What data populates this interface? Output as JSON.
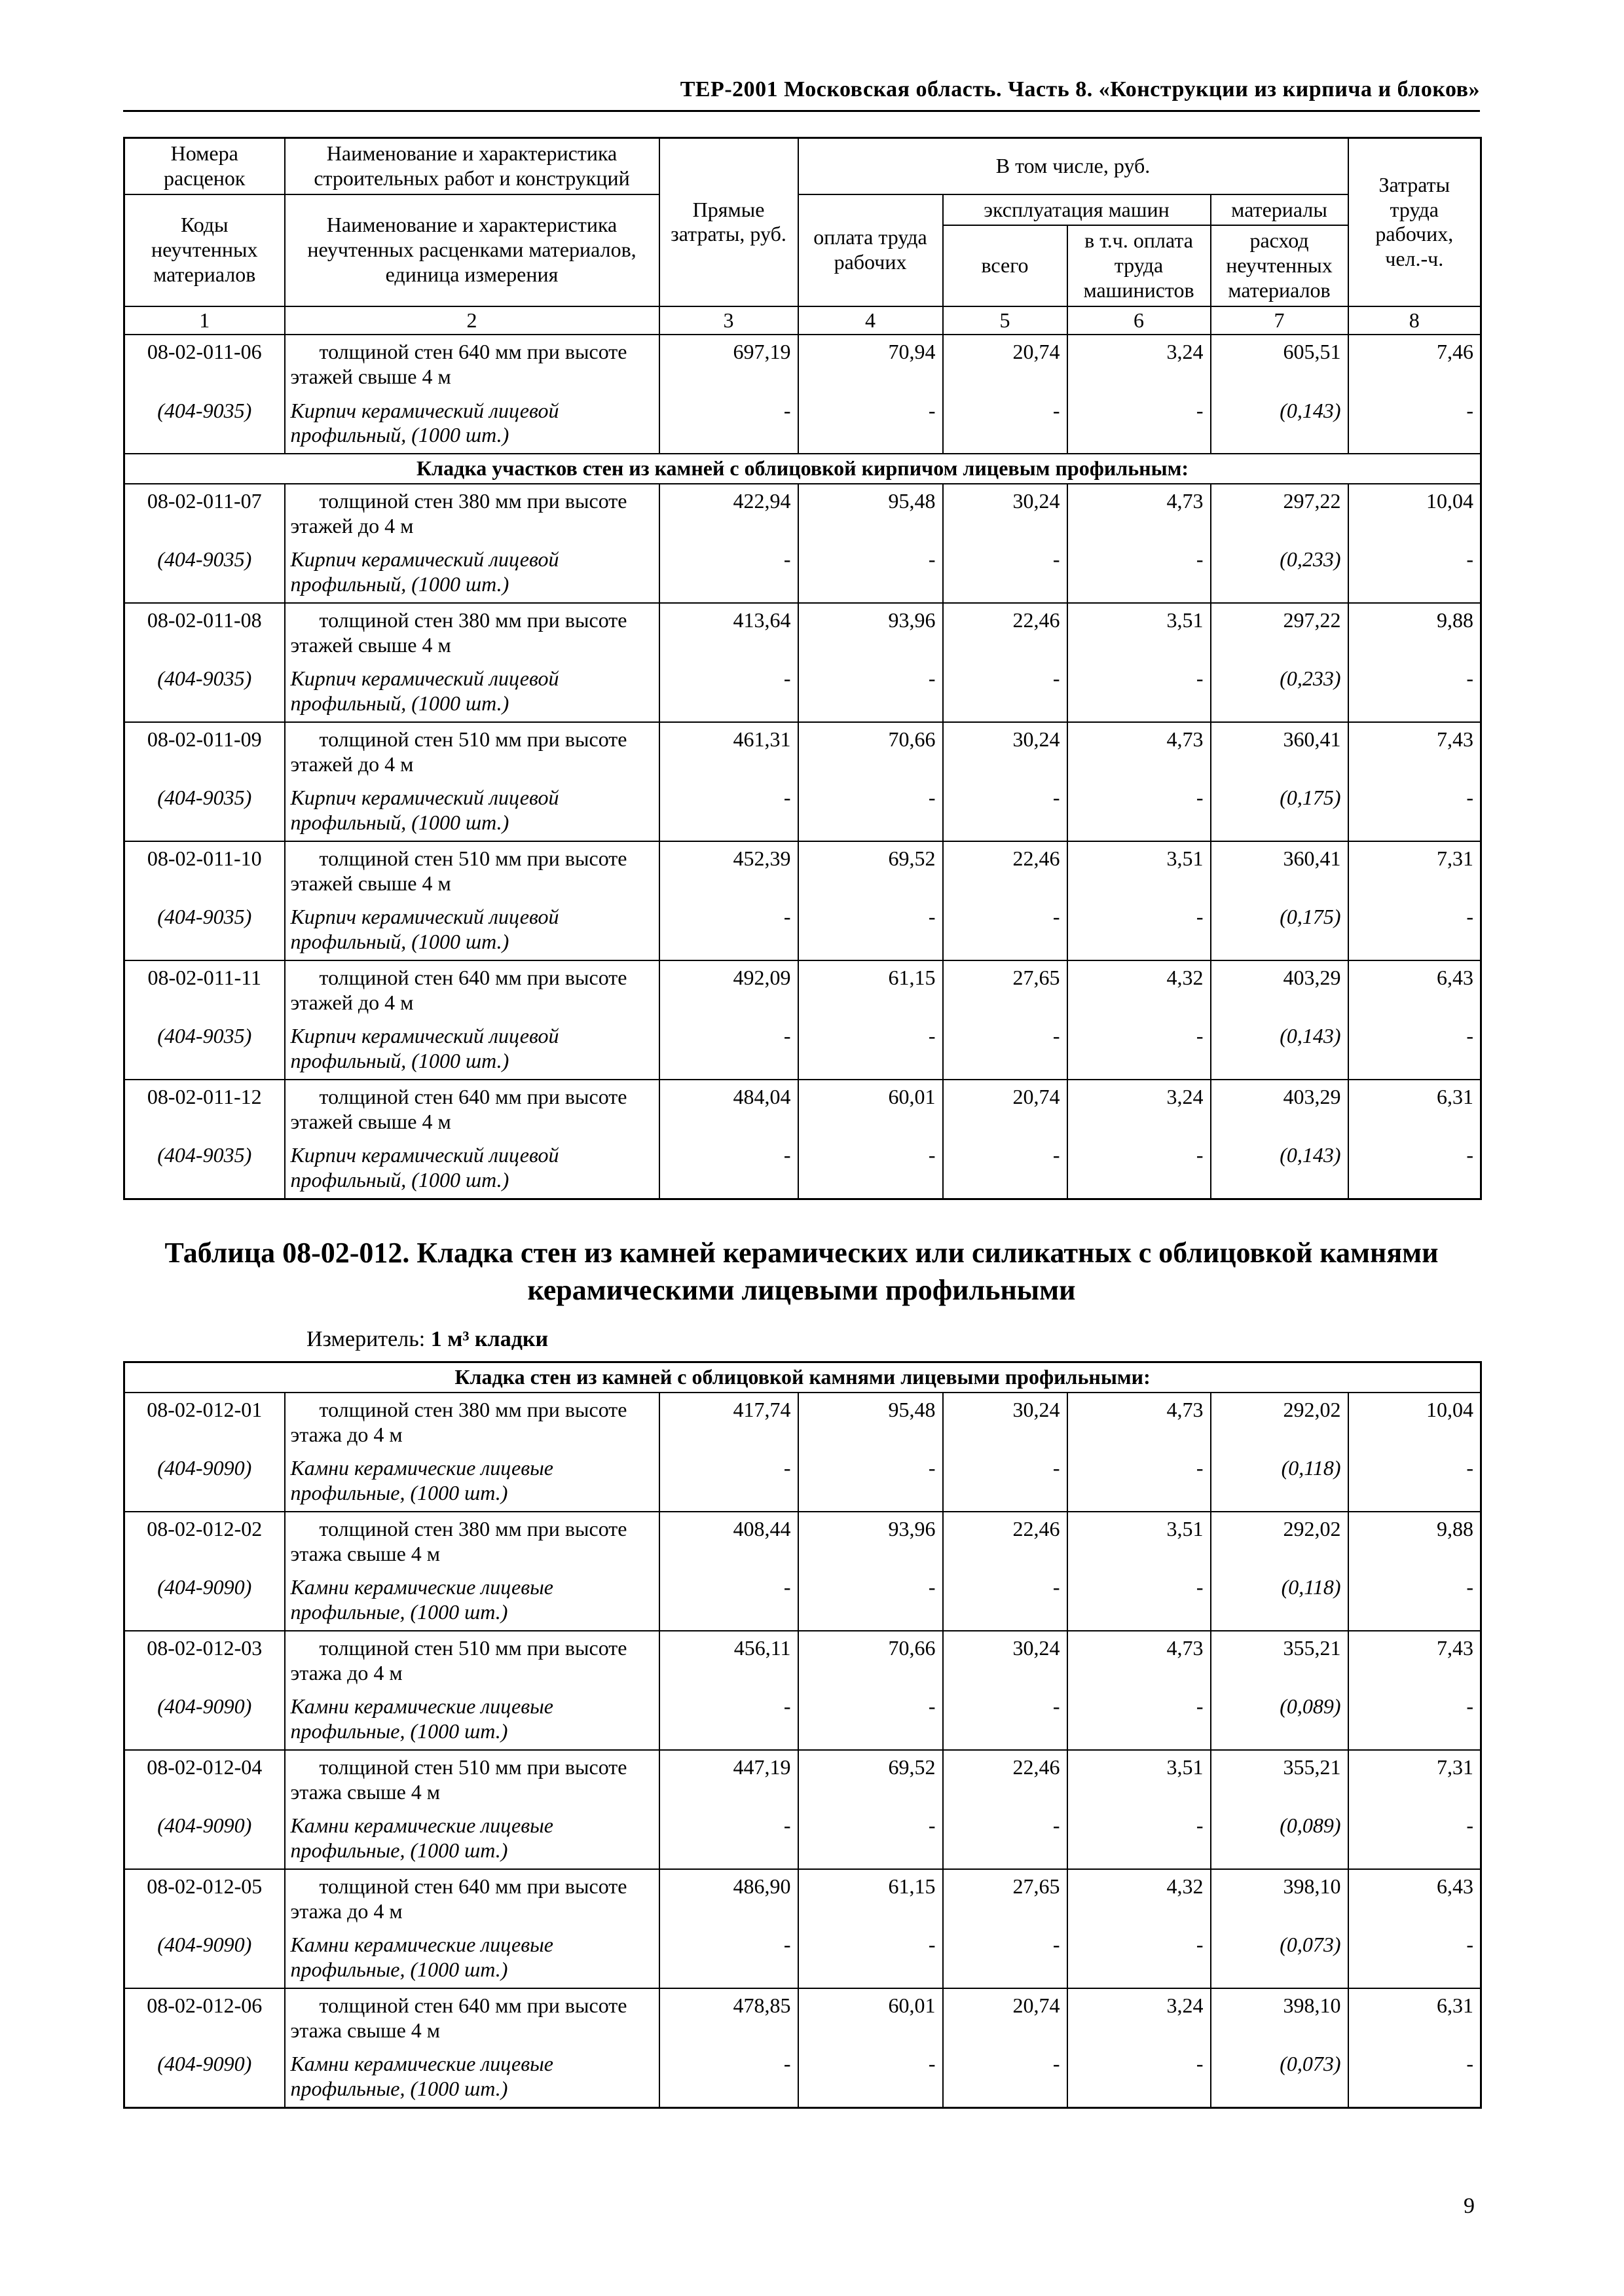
{
  "page": {
    "running_header": "ТЕР-2001 Московская область. Часть 8. «Конструкции из кирпича и блоков»",
    "page_number": "9"
  },
  "columns_header": {
    "nomera_rascenok": "Номера расценок",
    "kody_materialov": "Коды неучтенных материалов",
    "naimenovanie_rabot": "Наименование и характеристика строительных работ и конструкций",
    "naimenovanie_materialov": "Наименование и характеристика неучтенных расценками материалов, единица измерения",
    "pryamye_zatraty": "Прямые затраты, руб.",
    "v_tom_chisle": "В том числе, руб.",
    "oplata_truda": "оплата труда рабочих",
    "ekspluataciya_mashin": "эксплуатация машин",
    "vsego": "всего",
    "v_tch_oplata_mashinistov": "в т.ч. оплата труда машинистов",
    "materialy": "материалы",
    "rashod_materialov": "расход неучтенных материалов",
    "zatraty_truda": "Затраты труда рабочих, чел.-ч.",
    "numbers": [
      "1",
      "2",
      "3",
      "4",
      "5",
      "6",
      "7",
      "8"
    ]
  },
  "table1": {
    "blocks": [
      {
        "type": "entry",
        "code": "08-02-011-06",
        "work": "толщиной стен 640 мм при высоте этажей свыше 4 м",
        "values": [
          "697,19",
          "70,94",
          "20,74",
          "3,24",
          "605,51",
          "7,46"
        ],
        "material_code": "(404-9035)",
        "material": "Кирпич керамический лицевой профильный, (1000 шт.)",
        "material_values": [
          "-",
          "-",
          "-",
          "-",
          "(0,143)",
          "-"
        ]
      },
      {
        "type": "section",
        "label": "Кладка участков стен из камней с облицовкой кирпичом лицевым профильным:"
      },
      {
        "type": "entry",
        "code": "08-02-011-07",
        "work": "толщиной стен 380 мм при высоте этажей до 4 м",
        "values": [
          "422,94",
          "95,48",
          "30,24",
          "4,73",
          "297,22",
          "10,04"
        ],
        "material_code": "(404-9035)",
        "material": "Кирпич керамический лицевой профильный, (1000 шт.)",
        "material_values": [
          "-",
          "-",
          "-",
          "-",
          "(0,233)",
          "-"
        ]
      },
      {
        "type": "entry",
        "code": "08-02-011-08",
        "work": "толщиной стен 380 мм при высоте этажей свыше 4 м",
        "values": [
          "413,64",
          "93,96",
          "22,46",
          "3,51",
          "297,22",
          "9,88"
        ],
        "material_code": "(404-9035)",
        "material": "Кирпич керамический лицевой профильный, (1000 шт.)",
        "material_values": [
          "-",
          "-",
          "-",
          "-",
          "(0,233)",
          "-"
        ]
      },
      {
        "type": "entry",
        "code": "08-02-011-09",
        "work": "толщиной стен 510 мм при высоте этажей до 4 м",
        "values": [
          "461,31",
          "70,66",
          "30,24",
          "4,73",
          "360,41",
          "7,43"
        ],
        "material_code": "(404-9035)",
        "material": "Кирпич керамический лицевой профильный, (1000 шт.)",
        "material_values": [
          "-",
          "-",
          "-",
          "-",
          "(0,175)",
          "-"
        ]
      },
      {
        "type": "entry",
        "code": "08-02-011-10",
        "work": "толщиной стен 510 мм при высоте этажей свыше 4 м",
        "values": [
          "452,39",
          "69,52",
          "22,46",
          "3,51",
          "360,41",
          "7,31"
        ],
        "material_code": "(404-9035)",
        "material": "Кирпич керамический лицевой профильный, (1000 шт.)",
        "material_values": [
          "-",
          "-",
          "-",
          "-",
          "(0,175)",
          "-"
        ]
      },
      {
        "type": "entry",
        "code": "08-02-011-11",
        "work": "толщиной стен 640 мм при высоте этажей до 4 м",
        "values": [
          "492,09",
          "61,15",
          "27,65",
          "4,32",
          "403,29",
          "6,43"
        ],
        "material_code": "(404-9035)",
        "material": "Кирпич керамический лицевой профильный, (1000 шт.)",
        "material_values": [
          "-",
          "-",
          "-",
          "-",
          "(0,143)",
          "-"
        ]
      },
      {
        "type": "entry",
        "code": "08-02-011-12",
        "work": "толщиной стен 640 мм при высоте этажей свыше 4 м",
        "values": [
          "484,04",
          "60,01",
          "20,74",
          "3,24",
          "403,29",
          "6,31"
        ],
        "material_code": "(404-9035)",
        "material": "Кирпич керамический лицевой профильный, (1000 шт.)",
        "material_values": [
          "-",
          "-",
          "-",
          "-",
          "(0,143)",
          "-"
        ]
      }
    ]
  },
  "between": {
    "title": "Таблица 08-02-012. Кладка стен из камней керамических или силикатных с облицовкой камнями керамическими лицевыми профильными",
    "measure_label": "Измеритель:",
    "measure_value": "1 м³ кладки"
  },
  "table2": {
    "blocks": [
      {
        "type": "section",
        "label": "Кладка стен из камней с облицовкой камнями лицевыми профильными:"
      },
      {
        "type": "entry",
        "code": "08-02-012-01",
        "work": "толщиной стен 380 мм при высоте этажа до 4 м",
        "values": [
          "417,74",
          "95,48",
          "30,24",
          "4,73",
          "292,02",
          "10,04"
        ],
        "material_code": "(404-9090)",
        "material": "Камни керамические лицевые профильные, (1000 шт.)",
        "material_values": [
          "-",
          "-",
          "-",
          "-",
          "(0,118)",
          "-"
        ]
      },
      {
        "type": "entry",
        "code": "08-02-012-02",
        "work": "толщиной стен 380 мм при высоте этажа свыше 4 м",
        "values": [
          "408,44",
          "93,96",
          "22,46",
          "3,51",
          "292,02",
          "9,88"
        ],
        "material_code": "(404-9090)",
        "material": "Камни керамические лицевые профильные, (1000 шт.)",
        "material_values": [
          "-",
          "-",
          "-",
          "-",
          "(0,118)",
          "-"
        ]
      },
      {
        "type": "entry",
        "code": "08-02-012-03",
        "work": "толщиной стен 510 мм при высоте этажа до 4 м",
        "values": [
          "456,11",
          "70,66",
          "30,24",
          "4,73",
          "355,21",
          "7,43"
        ],
        "material_code": "(404-9090)",
        "material": "Камни керамические лицевые профильные, (1000 шт.)",
        "material_values": [
          "-",
          "-",
          "-",
          "-",
          "(0,089)",
          "-"
        ]
      },
      {
        "type": "entry",
        "code": "08-02-012-04",
        "work": "толщиной стен 510 мм при высоте этажа свыше 4 м",
        "values": [
          "447,19",
          "69,52",
          "22,46",
          "3,51",
          "355,21",
          "7,31"
        ],
        "material_code": "(404-9090)",
        "material": "Камни керамические лицевые профильные, (1000 шт.)",
        "material_values": [
          "-",
          "-",
          "-",
          "-",
          "(0,089)",
          "-"
        ]
      },
      {
        "type": "entry",
        "code": "08-02-012-05",
        "work": "толщиной стен 640 мм при высоте этажа до 4 м",
        "values": [
          "486,90",
          "61,15",
          "27,65",
          "4,32",
          "398,10",
          "6,43"
        ],
        "material_code": "(404-9090)",
        "material": "Камни керамические лицевые профильные, (1000 шт.)",
        "material_values": [
          "-",
          "-",
          "-",
          "-",
          "(0,073)",
          "-"
        ]
      },
      {
        "type": "entry",
        "code": "08-02-012-06",
        "work": "толщиной стен 640 мм при высоте этажа свыше 4 м",
        "values": [
          "478,85",
          "60,01",
          "20,74",
          "3,24",
          "398,10",
          "6,31"
        ],
        "material_code": "(404-9090)",
        "material": "Камни керамические лицевые профильные, (1000 шт.)",
        "material_values": [
          "-",
          "-",
          "-",
          "-",
          "(0,073)",
          "-"
        ]
      }
    ]
  }
}
